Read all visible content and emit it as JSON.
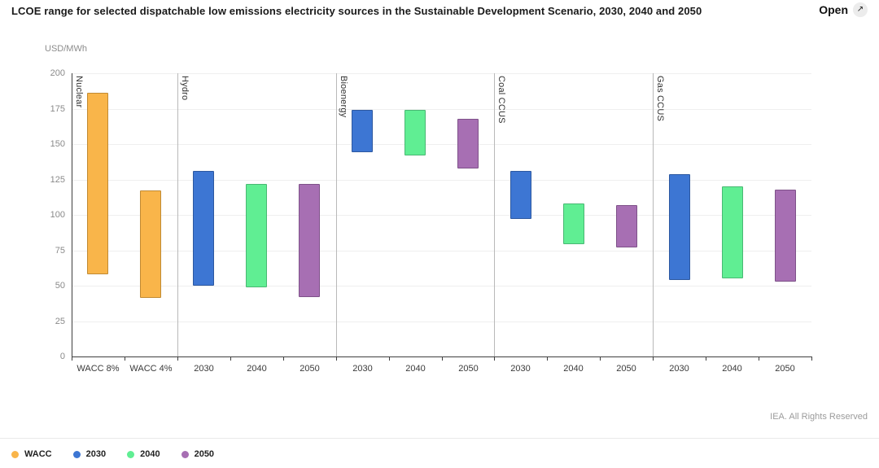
{
  "header": {
    "title": "LCOE range for selected dispatchable low emissions electricity sources in the Sustainable Development Scenario, 2030, 2040 and 2050",
    "open_button": {
      "label": "Open",
      "icon": "external-link-arrow",
      "icon_glyph": "↗"
    }
  },
  "footer": {
    "copyright": "IEA. All Rights Reserved"
  },
  "legend": {
    "position": "bottom-left",
    "items": [
      {
        "label": "WACC",
        "color": "#F9B54A"
      },
      {
        "label": "2030",
        "color": "#3D76D3"
      },
      {
        "label": "2040",
        "color": "#60EE93"
      },
      {
        "label": "2050",
        "color": "#A76FB3"
      }
    ]
  },
  "chart_data": {
    "type": "bar",
    "subtype": "floating-range-columns",
    "title": "LCOE range for selected dispatchable low emissions electricity sources in the Sustainable Development Scenario, 2030, 2040 and 2050",
    "xlabel": "",
    "ylabel": "USD/MWh",
    "unit": "USD/MWh",
    "ylim": [
      0,
      200
    ],
    "yticks": [
      0,
      25,
      50,
      75,
      100,
      125,
      150,
      175,
      200
    ],
    "grid": true,
    "series_colors": {
      "WACC": "#F9B54A",
      "2030": "#3D76D3",
      "2040": "#60EE93",
      "2050": "#A76FB3"
    },
    "series_border_colors": {
      "WACC": "#C08A33",
      "2030": "#2D58A0",
      "2040": "#49B873",
      "2050": "#7E5189"
    },
    "groups": [
      {
        "name": "Nuclear",
        "bars": [
          {
            "label": "WACC 8%",
            "series": "WACC",
            "low": 58,
            "high": 186
          },
          {
            "label": "WACC 4%",
            "series": "WACC",
            "low": 41,
            "high": 117
          }
        ]
      },
      {
        "name": "Hydro",
        "bars": [
          {
            "label": "2030",
            "series": "2030",
            "low": 50,
            "high": 131
          },
          {
            "label": "2040",
            "series": "2040",
            "low": 49,
            "high": 122
          },
          {
            "label": "2050",
            "series": "2050",
            "low": 42,
            "high": 122
          }
        ]
      },
      {
        "name": "Bioenergy",
        "bars": [
          {
            "label": "2030",
            "series": "2030",
            "low": 144,
            "high": 174
          },
          {
            "label": "2040",
            "series": "2040",
            "low": 142,
            "high": 174
          },
          {
            "label": "2050",
            "series": "2050",
            "low": 133,
            "high": 168
          }
        ]
      },
      {
        "name": "Coal CCUS",
        "bars": [
          {
            "label": "2030",
            "series": "2030",
            "low": 97,
            "high": 131
          },
          {
            "label": "2040",
            "series": "2040",
            "low": 79,
            "high": 108
          },
          {
            "label": "2050",
            "series": "2050",
            "low": 77,
            "high": 107
          }
        ]
      },
      {
        "name": "Gas CCUS",
        "bars": [
          {
            "label": "2030",
            "series": "2030",
            "low": 54,
            "high": 129
          },
          {
            "label": "2040",
            "series": "2040",
            "low": 55,
            "high": 120
          },
          {
            "label": "2050",
            "series": "2050",
            "low": 53,
            "high": 118
          }
        ]
      }
    ]
  }
}
